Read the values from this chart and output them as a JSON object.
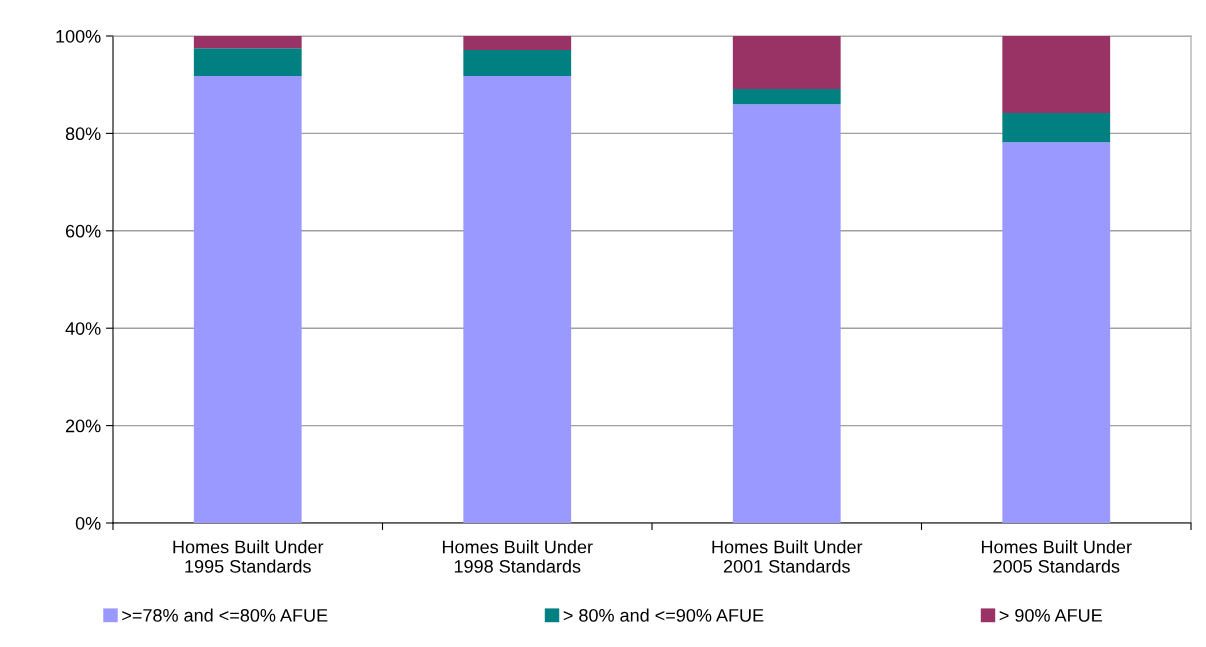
{
  "chart_data": {
    "type": "bar",
    "stacked": true,
    "categories": [
      "Homes Built Under\n1995 Standards",
      "Homes Built Under\n1998 Standards",
      "Homes Built Under\n2001 Standards",
      "Homes Built Under\n2005 Standards"
    ],
    "series": [
      {
        "name": ">=78% and <=80% AFUE",
        "color": "#9999ff",
        "values": [
          91.8,
          91.8,
          86.0,
          78.2
        ]
      },
      {
        "name": "> 80% and <=90% AFUE",
        "color": "#008080",
        "values": [
          5.7,
          5.3,
          3.1,
          6.0
        ]
      },
      {
        "name": "> 90% AFUE",
        "color": "#993366",
        "values": [
          2.5,
          2.9,
          10.9,
          15.8
        ]
      }
    ],
    "ylim": [
      0,
      100
    ],
    "yticks": [
      {
        "value": 0,
        "label": "0%"
      },
      {
        "value": 20,
        "label": "20%"
      },
      {
        "value": 40,
        "label": "40%"
      },
      {
        "value": 60,
        "label": "60%"
      },
      {
        "value": 80,
        "label": "80%"
      },
      {
        "value": 100,
        "label": "100%"
      }
    ],
    "grid": "y",
    "legend": "bottom"
  }
}
